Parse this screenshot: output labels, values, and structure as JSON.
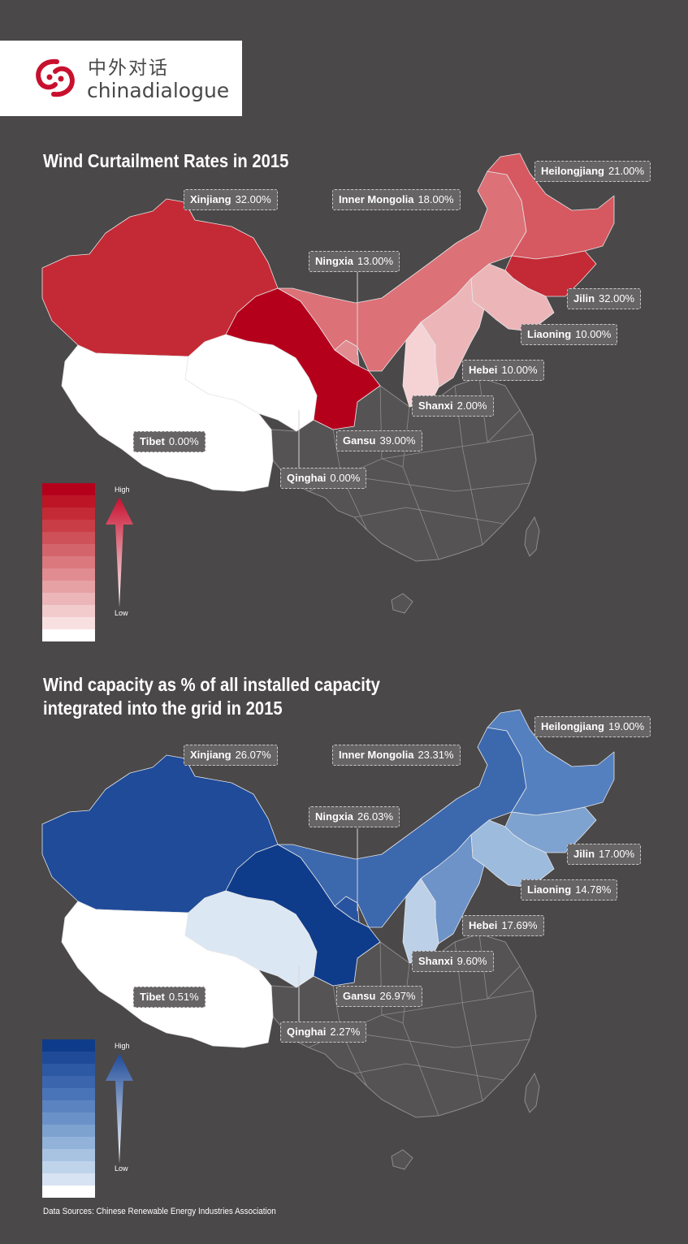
{
  "logo": {
    "chinese": "中外对话",
    "english": "chinadialogue",
    "mark_color": "#c8102e"
  },
  "source": "Data Sources: Chinese Renewable Energy Industries Association",
  "base_map_color": "#555354",
  "province_border": "#8e8c8d",
  "maps": [
    {
      "id": "curtailment",
      "title": "Wind Curtailment Rates in 2015",
      "legend": {
        "high": "High",
        "low": "Low",
        "colors": [
          "#b5001c",
          "#bd1526",
          "#c42a35",
          "#c93d46",
          "#ce5058",
          "#d4646b",
          "#da787e",
          "#e08c91",
          "#e6a1a5",
          "#ecb6b9",
          "#f2cbcd",
          "#f8e0e1",
          "#ffffff"
        ]
      },
      "provinces": [
        {
          "name": "Xinjiang",
          "value": "32.00%",
          "color": "#c42a35"
        },
        {
          "name": "Inner Mongolia",
          "value": "18.00%",
          "color": "#dc7177"
        },
        {
          "name": "Heilongjiang",
          "value": "21.00%",
          "color": "#d65860"
        },
        {
          "name": "Ningxia",
          "value": "13.00%",
          "color": "#e08c91"
        },
        {
          "name": "Jilin",
          "value": "32.00%",
          "color": "#c42a35"
        },
        {
          "name": "Liaoning",
          "value": "10.00%",
          "color": "#ecb6b9"
        },
        {
          "name": "Hebei",
          "value": "10.00%",
          "color": "#ecb6b9"
        },
        {
          "name": "Shanxi",
          "value": "2.00%",
          "color": "#f5d3d5"
        },
        {
          "name": "Gansu",
          "value": "39.00%",
          "color": "#b5001c"
        },
        {
          "name": "Tibet",
          "value": "0.00%",
          "color": "#ffffff"
        },
        {
          "name": "Qinghai",
          "value": "0.00%",
          "color": "#ffffff"
        }
      ]
    },
    {
      "id": "capacity",
      "title_lines": [
        "Wind capacity as % of all installed capacity",
        "integrated into the grid in 2015"
      ],
      "legend": {
        "high": "High",
        "low": "Low",
        "colors": [
          "#0f3c8a",
          "#1f4a98",
          "#2d58a4",
          "#3b66ae",
          "#4a74b8",
          "#5a83c0",
          "#6b92c8",
          "#7ea2d0",
          "#92b2d9",
          "#a8c3e2",
          "#bfd3ea",
          "#d7e3f2",
          "#ffffff"
        ]
      },
      "provinces": [
        {
          "name": "Xinjiang",
          "value": "26.07%",
          "color": "#1f4b99"
        },
        {
          "name": "Inner Mongolia",
          "value": "23.31%",
          "color": "#3c68ae"
        },
        {
          "name": "Heilongjiang",
          "value": "19.00%",
          "color": "#5480c0"
        },
        {
          "name": "Ningxia",
          "value": "26.03%",
          "color": "#2853a0"
        },
        {
          "name": "Jilin",
          "value": "17.00%",
          "color": "#7fa3d1"
        },
        {
          "name": "Liaoning",
          "value": "14.78%",
          "color": "#9cbbdd"
        },
        {
          "name": "Hebei",
          "value": "17.69%",
          "color": "#6d93c8"
        },
        {
          "name": "Shanxi",
          "value": "9.60%",
          "color": "#bcd0e8"
        },
        {
          "name": "Gansu",
          "value": "26.97%",
          "color": "#0f3c8a"
        },
        {
          "name": "Tibet",
          "value": "0.51%",
          "color": "#ffffff"
        },
        {
          "name": "Qinghai",
          "value": "2.27%",
          "color": "#dce7f4"
        }
      ]
    }
  ]
}
